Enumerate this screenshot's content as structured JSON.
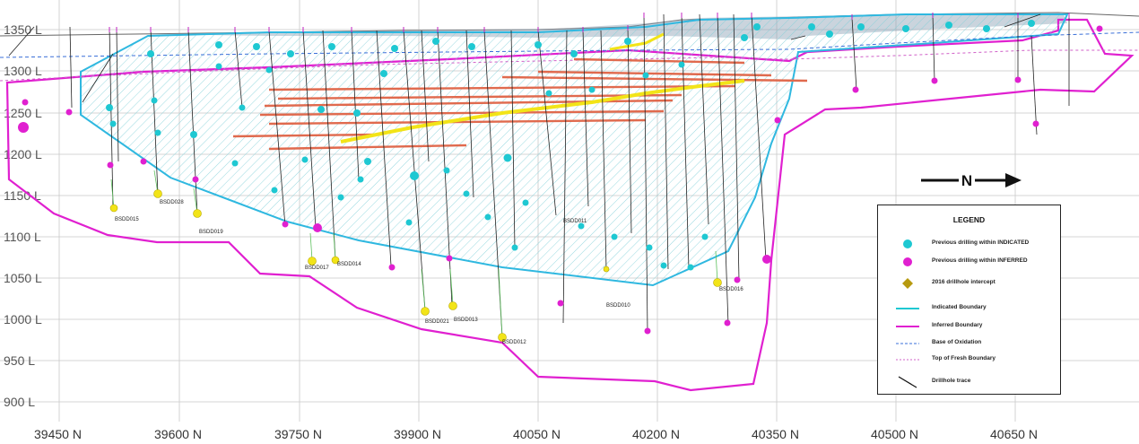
{
  "elevation_labels": [
    "1350 L",
    "1300 L",
    "1250 L",
    "1200 L",
    "1150 L",
    "1100 L",
    "1050 L",
    "1000 L",
    "950 L",
    "900 L"
  ],
  "northing_labels": [
    "39450 N",
    "39600 N",
    "39750 N",
    "39900 N",
    "40050 N",
    "40200 N",
    "40350 N",
    "40500 N",
    "40650 N"
  ],
  "hole_ids": [
    {
      "label": "BSDD015"
    },
    {
      "label": "BSDD028"
    },
    {
      "label": "BSDD019"
    },
    {
      "label": "BSDD017"
    },
    {
      "label": "BSDD014"
    },
    {
      "label": "BSDD021"
    },
    {
      "label": "BSDD013"
    },
    {
      "label": "BSDD012"
    },
    {
      "label": "BSDD011"
    },
    {
      "label": "BSDD010"
    },
    {
      "label": "BSDD016"
    }
  ],
  "north_arrow": {
    "label": "N"
  },
  "legend": {
    "title": "LEGEND",
    "items": [
      {
        "label": "Previous drilling within INDICATED",
        "symbol": "cyan-dot-icon"
      },
      {
        "label": "Previous drilling within INFERRED",
        "symbol": "magenta-dot-icon"
      },
      {
        "label": "2016 drillhole intercept",
        "symbol": "yellow-diamond-icon"
      },
      {
        "label": "Indicated Boundary",
        "symbol": "cyan-line-icon"
      },
      {
        "label": "Inferred Boundary",
        "symbol": "magenta-line-icon"
      },
      {
        "label": "Base of Oxidation",
        "symbol": "blue-dashed-line-icon"
      },
      {
        "label": "Top of Fresh Boundary",
        "symbol": "pink-dashed-line-icon"
      },
      {
        "label": "Drillhole trace",
        "symbol": "black-trace-icon"
      }
    ]
  },
  "colors": {
    "indicated": "#1ec8d2",
    "inferred": "#e020d0",
    "intercept": "#f2e418",
    "base_oxidation": "#3a6fd8",
    "top_fresh": "#d060c8",
    "lode": "#e06a4e",
    "grid": "#c8c8c8"
  }
}
